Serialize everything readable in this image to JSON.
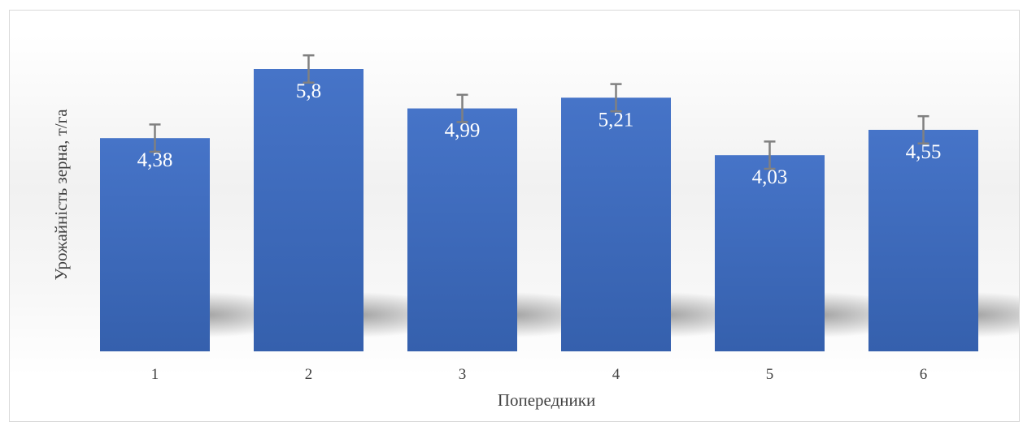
{
  "chart_data": {
    "type": "bar",
    "title": "",
    "xlabel": "Попередники",
    "ylabel": "Урожайність зерна, т/га",
    "categories": [
      "1",
      "2",
      "3",
      "4",
      "5",
      "6"
    ],
    "values": [
      4.38,
      5.8,
      4.99,
      5.21,
      4.03,
      4.55
    ],
    "value_labels": [
      "4,38",
      "5,8",
      "4,99",
      "5,21",
      "4,03",
      "4,55"
    ],
    "error": [
      0.28,
      0.28,
      0.28,
      0.28,
      0.28,
      0.28
    ],
    "ylim": [
      0,
      6.5
    ],
    "grid": false,
    "legend": "none",
    "colors": {
      "bar_top": "#4674c8",
      "bar_bottom": "#3560ad",
      "error_bar": "#808080"
    }
  }
}
